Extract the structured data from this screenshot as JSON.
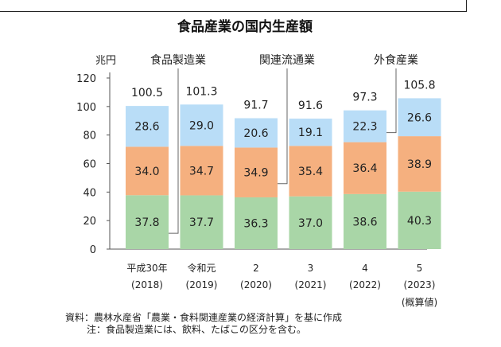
{
  "chart_data": {
    "type": "bar",
    "stacked": true,
    "title": "食品産業の国内生産額",
    "y_unit": "兆円",
    "ylim": [
      0,
      120
    ],
    "yticks": [
      0,
      20,
      40,
      60,
      80,
      100,
      120
    ],
    "categories": [
      {
        "line1": "平成30年",
        "line2": "(2018)"
      },
      {
        "line1": "令和元",
        "line2": "(2019)"
      },
      {
        "line1": "2",
        "line2": "(2020)"
      },
      {
        "line1": "3",
        "line2": "(2021)"
      },
      {
        "line1": "4",
        "line2": "(2022)"
      },
      {
        "line1": "5",
        "line2": "(2023)",
        "line3": "(概算値)"
      }
    ],
    "series": [
      {
        "name": "食品製造業",
        "color": "#a9d6a7",
        "values": [
          37.8,
          37.7,
          36.3,
          37.0,
          38.6,
          40.3
        ]
      },
      {
        "name": "関連流通業",
        "color": "#f5b07f",
        "values": [
          34.0,
          34.7,
          34.9,
          35.4,
          36.4,
          38.9
        ]
      },
      {
        "name": "外食産業",
        "color": "#b9ddf7",
        "values": [
          28.6,
          29.0,
          20.6,
          19.1,
          22.3,
          26.6
        ]
      }
    ],
    "totals": [
      100.5,
      101.3,
      91.7,
      91.6,
      97.3,
      105.8
    ],
    "series_label_color": "#c0392b",
    "grid": false
  },
  "notes": {
    "source": "資料：農林水産省「農業・食料関連産業の経済計算」を基に作成",
    "note": "注：食品製造業には、飲料、たばこの区分を含む。"
  }
}
